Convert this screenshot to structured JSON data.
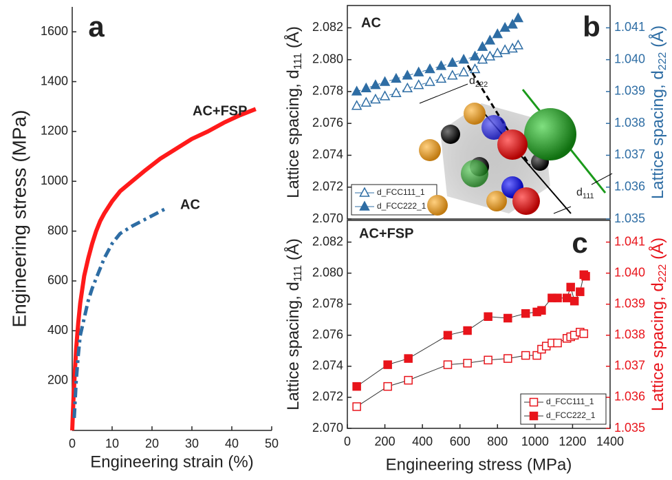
{
  "chart_data": [
    {
      "type": "line",
      "panel_label": "a",
      "frame": "open",
      "xlabel": "Engineering strain (%)",
      "ylabel": "Engineering stress (MPa)",
      "xlim": [
        0,
        50
      ],
      "xticks": [
        0,
        10,
        20,
        30,
        40,
        50
      ],
      "ylim": [
        0,
        1700
      ],
      "yticks": [
        200,
        400,
        600,
        800,
        1000,
        1200,
        1400,
        1600
      ],
      "series": [
        {
          "name": "AC+FSP",
          "color": "#ff1a1a",
          "style": "solid",
          "x": [
            0,
            0.3,
            0.6,
            1,
            1.5,
            2,
            3,
            4,
            5,
            6,
            7,
            8,
            10,
            12,
            15,
            18,
            22,
            26,
            30,
            34,
            38,
            42,
            46
          ],
          "values": [
            0,
            120,
            220,
            330,
            430,
            510,
            620,
            690,
            750,
            800,
            840,
            870,
            920,
            960,
            1000,
            1040,
            1090,
            1130,
            1170,
            1200,
            1235,
            1265,
            1290
          ]
        },
        {
          "name": "AC",
          "color": "#2e6da4",
          "style": "dashdot",
          "x": [
            0.5,
            1,
            1.5,
            2,
            3,
            4,
            5,
            6,
            7,
            8,
            10,
            12,
            15,
            18,
            21,
            24
          ],
          "values": [
            50,
            200,
            300,
            380,
            450,
            520,
            570,
            610,
            650,
            690,
            750,
            790,
            820,
            845,
            870,
            895
          ]
        }
      ]
    },
    {
      "type": "scatter",
      "panel_label": "b",
      "frame": "box",
      "annotation": "AC",
      "legend": "lower left",
      "line_style": "dashed",
      "ylabel": {
        "text": "Lattice spacing, d",
        "sub": "111",
        "unit": " (Å)"
      },
      "y2label": {
        "text": "Lattice spacing, d",
        "sub": "222",
        "unit": " (Å)"
      },
      "inset_labels": [
        {
          "main": "d",
          "sub": "222"
        },
        {
          "main": "d",
          "sub": "111"
        }
      ],
      "xlim": [
        0,
        1400
      ],
      "ylim": [
        2.07,
        2.0834
      ],
      "yticks": [
        {
          "value": 2.07,
          "label": "2.070"
        },
        2.072,
        2.074,
        2.076,
        2.078,
        {
          "value": 2.08,
          "label": "2.080"
        },
        2.082
      ],
      "y2lim": [
        1.035,
        1.0417
      ],
      "y2ticks": [
        1.035,
        1.036,
        1.037,
        1.038,
        1.039,
        {
          "value": 1.04,
          "label": "1.040"
        },
        1.041
      ],
      "series": [
        {
          "name": "d_FCC111_1",
          "color": "#2e6da4",
          "marker": "triangle-open",
          "axis": "y",
          "x": [
            50,
            100,
            150,
            200,
            260,
            320,
            380,
            440,
            500,
            560,
            620,
            680,
            720,
            760,
            800,
            840,
            880,
            910
          ],
          "values": [
            2.0771,
            2.0773,
            2.0775,
            2.0777,
            2.0779,
            2.0782,
            2.0784,
            2.0786,
            2.0788,
            2.079,
            2.0792,
            2.0794,
            2.08,
            2.0802,
            2.0804,
            2.0806,
            2.0807,
            2.0809
          ]
        },
        {
          "name": "d_FCC222_1",
          "color": "#2e6da4",
          "marker": "triangle",
          "axis": "y2",
          "x": [
            50,
            100,
            150,
            200,
            260,
            320,
            380,
            440,
            500,
            560,
            620,
            680,
            720,
            760,
            800,
            840,
            880,
            910
          ],
          "values": [
            1.039,
            1.0391,
            1.0392,
            1.0393,
            1.0394,
            1.0395,
            1.0396,
            1.0397,
            1.0398,
            1.0399,
            1.04,
            1.0401,
            1.0404,
            1.0406,
            1.0408,
            1.041,
            1.0411,
            1.0413
          ]
        }
      ]
    },
    {
      "type": "scatter",
      "panel_label": "c",
      "frame": "box",
      "annotation": "AC+FSP",
      "legend": "lower right",
      "line_style": "solid",
      "xlabel": "Engineering stress (MPa)",
      "ylabel": {
        "text": "Lattice spacing, d",
        "sub": "111",
        "unit": " (Å)"
      },
      "y2label": {
        "text": "Lattice spacing, d",
        "sub": "222",
        "unit": " (Å)"
      },
      "xlim": [
        0,
        1400
      ],
      "xticks": [
        0,
        200,
        400,
        600,
        800,
        1000,
        1200,
        1400
      ],
      "ylim": [
        2.07,
        2.0834
      ],
      "yticks": [
        {
          "value": 2.07,
          "label": "2.070"
        },
        2.072,
        2.074,
        2.076,
        2.078,
        {
          "value": 2.08,
          "label": "2.080"
        },
        2.082
      ],
      "y2lim": [
        1.035,
        1.0417
      ],
      "y2ticks": [
        1.035,
        1.036,
        1.037,
        1.038,
        1.039,
        {
          "value": 1.04,
          "label": "1.040"
        },
        1.041
      ],
      "series": [
        {
          "name": "d_FCC111_1",
          "color": "#e8141b",
          "marker": "square-open",
          "axis": "y",
          "x": [
            50,
            215,
            325,
            535,
            640,
            750,
            855,
            950,
            1010,
            1035,
            1060,
            1090,
            1120,
            1170,
            1190,
            1210,
            1240,
            1260
          ],
          "values": [
            2.0714,
            2.0727,
            2.0731,
            2.0741,
            2.0742,
            2.0744,
            2.0745,
            2.0747,
            2.0747,
            2.0751,
            2.0753,
            2.0755,
            2.0755,
            2.0758,
            2.0759,
            2.076,
            2.0762,
            2.0761
          ]
        },
        {
          "name": "d_FCC222_1",
          "color": "#e8141b",
          "marker": "square",
          "axis": "y2",
          "x": [
            50,
            215,
            325,
            535,
            640,
            750,
            855,
            950,
            1010,
            1035,
            1090,
            1120,
            1170,
            1190,
            1210,
            1240,
            1260,
            1270
          ],
          "values": [
            1.03635,
            1.03705,
            1.03725,
            1.038,
            1.03815,
            1.0386,
            1.03855,
            1.0387,
            1.03875,
            1.0388,
            1.0392,
            1.0392,
            1.0392,
            1.03955,
            1.0391,
            1.0394,
            1.03995,
            1.0399
          ]
        }
      ]
    }
  ]
}
